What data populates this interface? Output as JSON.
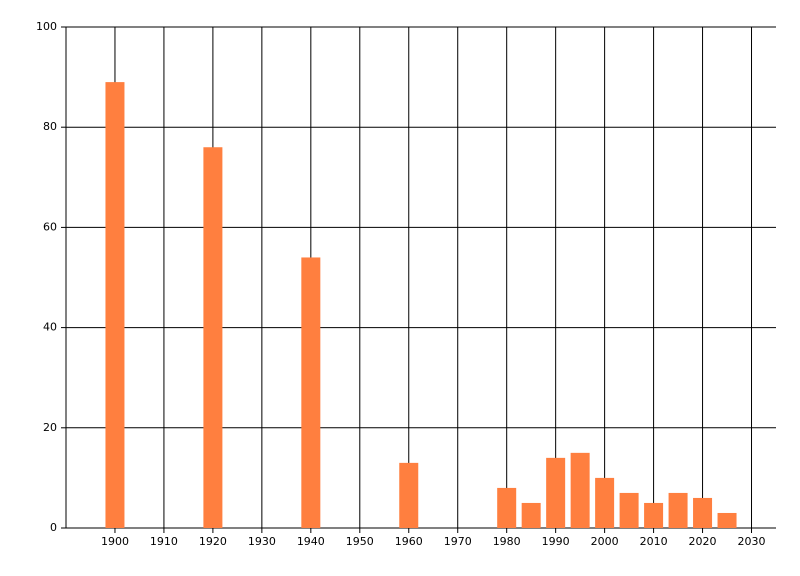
{
  "chart_data": {
    "type": "bar",
    "x": [
      1900,
      1920,
      1940,
      1960,
      1980,
      1985,
      1990,
      1995,
      2000,
      2005,
      2010,
      2015,
      2020,
      2025
    ],
    "values": [
      89,
      76,
      54,
      13,
      8,
      5,
      14,
      15,
      10,
      7,
      5,
      7,
      6,
      3
    ],
    "color": "#ff7f3f",
    "xlim": [
      1890,
      2035
    ],
    "xticks": [
      1900,
      1910,
      1920,
      1930,
      1940,
      1950,
      1960,
      1970,
      1980,
      1990,
      2000,
      2010,
      2020,
      2030
    ],
    "ylim": [
      0,
      100
    ],
    "yticks": [
      0,
      20,
      40,
      60,
      80,
      100
    ],
    "grid": true
  }
}
